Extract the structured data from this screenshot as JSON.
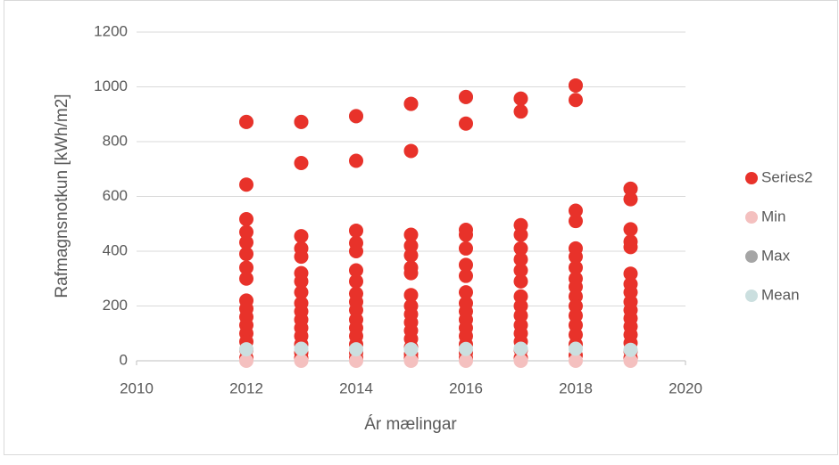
{
  "chart_data": {
    "type": "scatter",
    "x_label": "Ár mælingar",
    "y_label": "Rafmagnsnotkun [kWh/m2]",
    "xlim": [
      2010,
      2020
    ],
    "xticks": [
      2010,
      2012,
      2014,
      2016,
      2018,
      2020
    ],
    "ylim": [
      0,
      1200
    ],
    "yticks": [
      0,
      200,
      400,
      600,
      800,
      1000,
      1200
    ],
    "grid": true,
    "legend": "right",
    "series": [
      {
        "name": "Series2",
        "color": "#e8322a",
        "x": [
          2012,
          2012,
          2012,
          2012,
          2012,
          2012,
          2012,
          2012,
          2012,
          2012,
          2012,
          2012,
          2012,
          2012,
          2012,
          2012,
          2013,
          2013,
          2013,
          2013,
          2013,
          2013,
          2013,
          2013,
          2013,
          2013,
          2013,
          2013,
          2013,
          2013,
          2013,
          2013,
          2014,
          2014,
          2014,
          2014,
          2014,
          2014,
          2014,
          2014,
          2014,
          2014,
          2014,
          2014,
          2014,
          2014,
          2014,
          2014,
          2015,
          2015,
          2015,
          2015,
          2015,
          2015,
          2015,
          2015,
          2015,
          2015,
          2015,
          2015,
          2015,
          2015,
          2015,
          2015,
          2016,
          2016,
          2016,
          2016,
          2016,
          2016,
          2016,
          2016,
          2016,
          2016,
          2016,
          2016,
          2016,
          2016,
          2016,
          2016,
          2017,
          2017,
          2017,
          2017,
          2017,
          2017,
          2017,
          2017,
          2017,
          2017,
          2017,
          2017,
          2017,
          2017,
          2017,
          2017,
          2018,
          2018,
          2018,
          2018,
          2018,
          2018,
          2018,
          2018,
          2018,
          2018,
          2018,
          2018,
          2018,
          2018,
          2018,
          2018,
          2019,
          2019,
          2019,
          2019,
          2019,
          2019,
          2019,
          2019,
          2019,
          2019,
          2019,
          2019,
          2019,
          2019,
          2019,
          2019
        ],
        "values": [
          872,
          643,
          517,
          470,
          432,
          390,
          340,
          300,
          220,
          190,
          160,
          130,
          100,
          70,
          40,
          10,
          872,
          722,
          455,
          410,
          380,
          320,
          290,
          250,
          210,
          180,
          150,
          120,
          90,
          60,
          30,
          10,
          893,
          730,
          475,
          430,
          400,
          330,
          290,
          245,
          215,
          185,
          150,
          120,
          90,
          60,
          30,
          10,
          938,
          766,
          460,
          420,
          385,
          340,
          320,
          240,
          200,
          170,
          140,
          110,
          80,
          50,
          25,
          10,
          963,
          866,
          478,
          460,
          410,
          350,
          310,
          250,
          210,
          180,
          150,
          120,
          90,
          60,
          30,
          10,
          957,
          910,
          495,
          460,
          410,
          370,
          330,
          290,
          235,
          200,
          165,
          130,
          100,
          70,
          40,
          10,
          1005,
          952,
          548,
          510,
          410,
          380,
          340,
          300,
          270,
          235,
          200,
          165,
          130,
          95,
          60,
          20,
          628,
          590,
          480,
          435,
          415,
          318,
          280,
          250,
          215,
          185,
          155,
          125,
          95,
          65,
          35,
          10
        ]
      },
      {
        "name": "Min",
        "color": "#f4c0bf",
        "x": [
          2012,
          2013,
          2014,
          2015,
          2016,
          2017,
          2018,
          2019
        ],
        "values": [
          0,
          0,
          0,
          0,
          0,
          0,
          0,
          0
        ]
      },
      {
        "name": "Max",
        "color": "#a5a5a5",
        "x": [
          2012,
          2013,
          2014,
          2015,
          2016,
          2017,
          2018,
          2019
        ],
        "values": [
          872,
          872,
          893,
          938,
          963,
          957,
          1005,
          628
        ]
      },
      {
        "name": "Mean",
        "color": "#cbdfdf",
        "x": [
          2012,
          2013,
          2014,
          2015,
          2016,
          2017,
          2018,
          2019
        ],
        "values": [
          42,
          44,
          42,
          42,
          43,
          44,
          44,
          40
        ]
      }
    ]
  }
}
